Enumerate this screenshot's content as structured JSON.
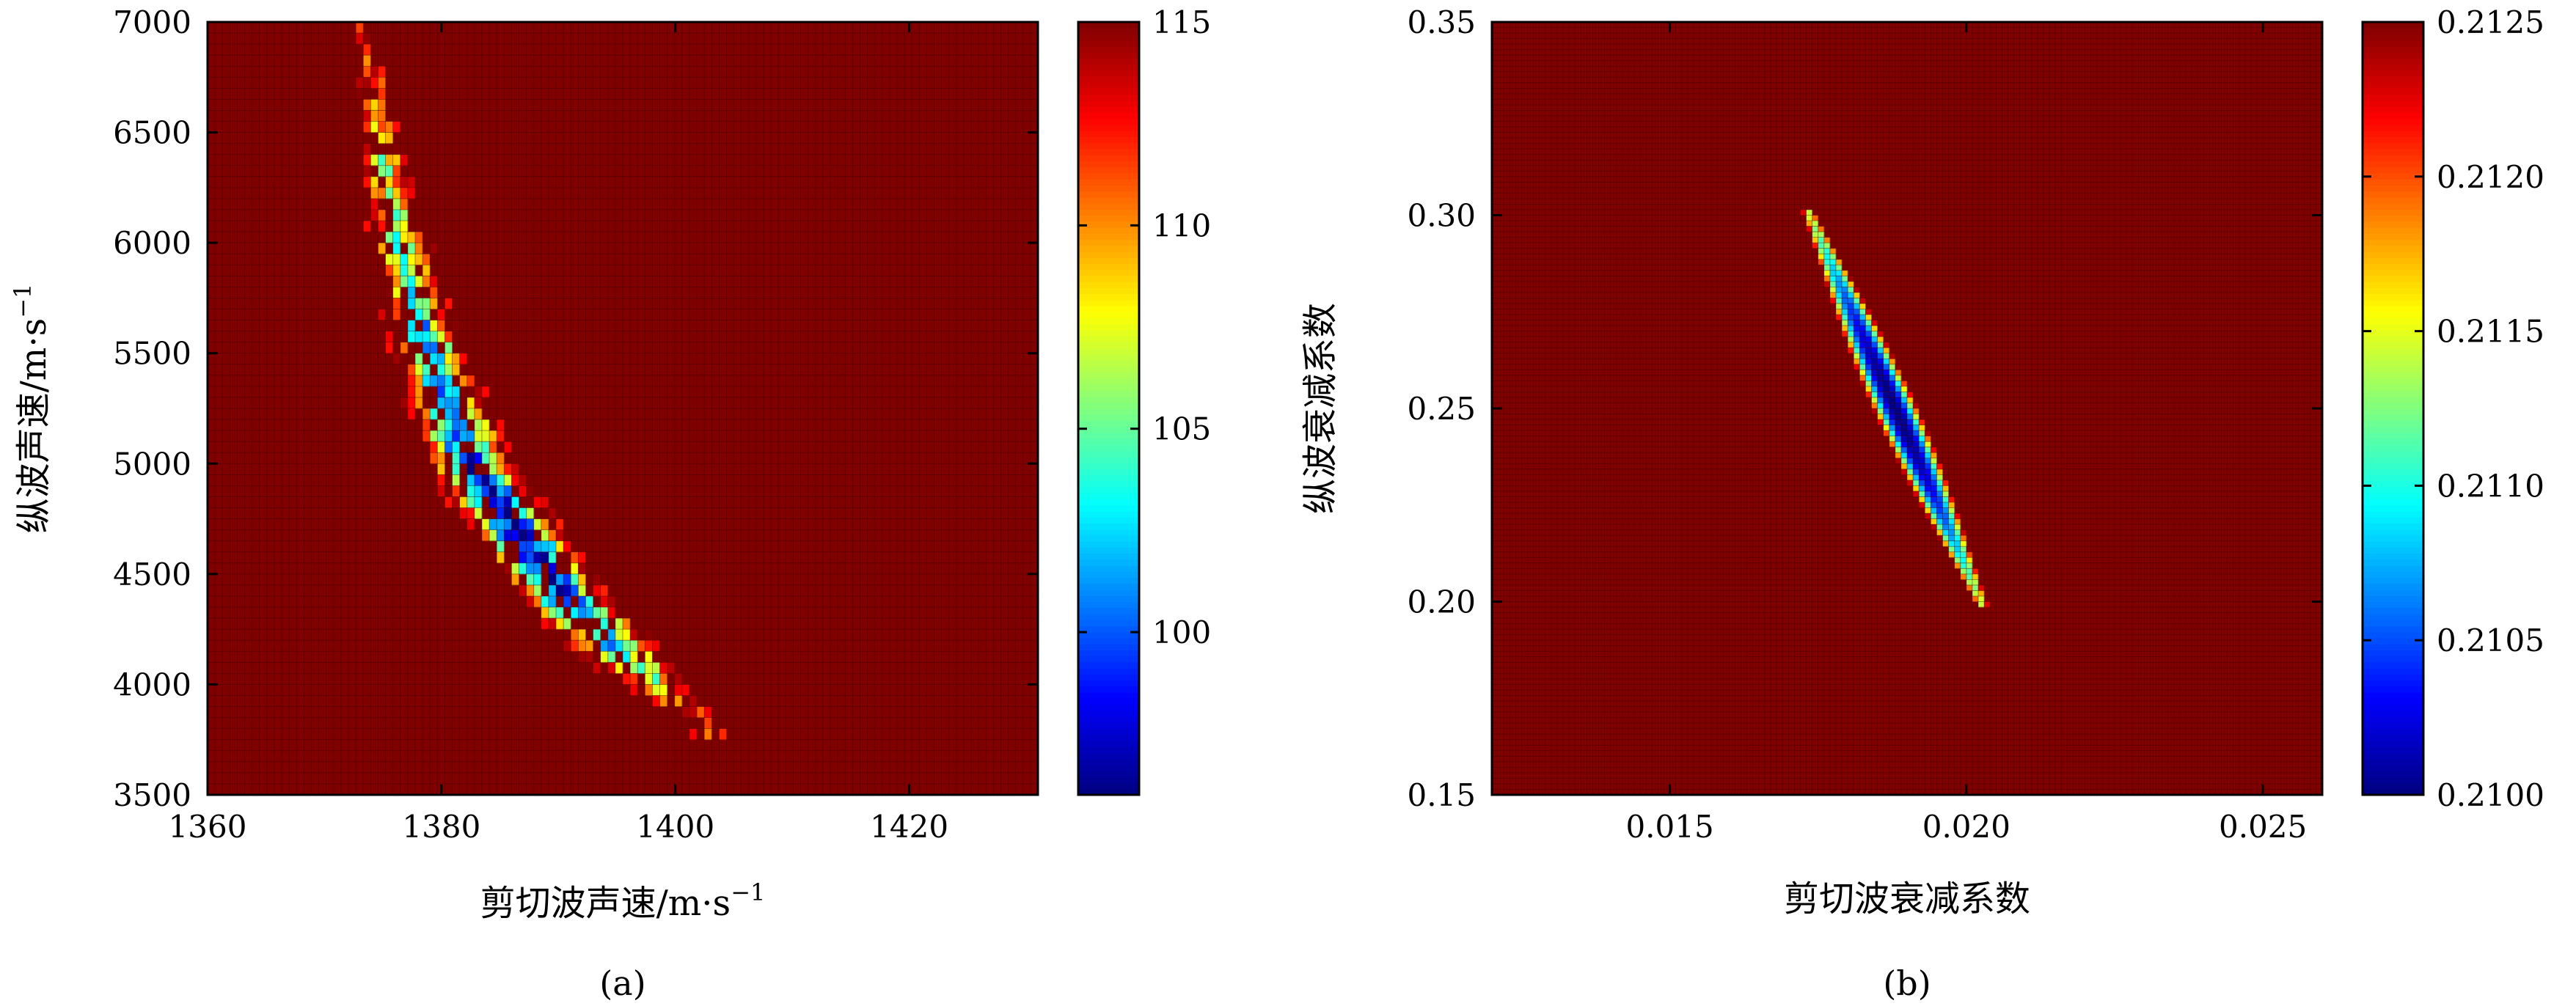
{
  "chart_data": [
    {
      "type": "heatmap",
      "panel_label": "(a)",
      "xlabel_text": "剪切波声速/m·s",
      "xlabel_sup": "−1",
      "ylabel_text": "纵波声速/m·s",
      "ylabel_sup": "−1",
      "xlim": [
        1360,
        1431
      ],
      "ylim": [
        3500,
        7000
      ],
      "x_ticks": [
        1360,
        1380,
        1400,
        1420
      ],
      "y_ticks": [
        3500,
        4000,
        4500,
        5000,
        5500,
        6000,
        6500,
        7000
      ],
      "colorbar": {
        "min": 96,
        "max": 115,
        "ticks": [
          100,
          105,
          110,
          115
        ],
        "colormap": "jet"
      },
      "background_value": 115,
      "grid": {
        "nx": 112,
        "ny": 70
      },
      "valley": {
        "description": "low-misfit band",
        "points": [
          {
            "x": 1373.5,
            "y": 7000,
            "half_width": 0.8,
            "min": 114
          },
          {
            "x": 1374.5,
            "y": 6500,
            "half_width": 1.5,
            "min": 108
          },
          {
            "x": 1376.5,
            "y": 6000,
            "half_width": 2.2,
            "min": 104
          },
          {
            "x": 1379.0,
            "y": 5500,
            "half_width": 2.8,
            "min": 101
          },
          {
            "x": 1382.5,
            "y": 5000,
            "half_width": 3.4,
            "min": 98
          },
          {
            "x": 1386.5,
            "y": 4700,
            "half_width": 3.6,
            "min": 97
          },
          {
            "x": 1390.5,
            "y": 4400,
            "half_width": 3.6,
            "min": 98
          },
          {
            "x": 1395.0,
            "y": 4150,
            "half_width": 3.2,
            "min": 102
          },
          {
            "x": 1399.5,
            "y": 3950,
            "half_width": 2.4,
            "min": 108
          },
          {
            "x": 1403.0,
            "y": 3850,
            "half_width": 1.2,
            "min": 113
          }
        ]
      }
    },
    {
      "type": "heatmap",
      "panel_label": "(b)",
      "xlabel_text": "剪切波衰减系数",
      "ylabel_text": "纵波衰减系数",
      "xlim": [
        0.012,
        0.026
      ],
      "ylim": [
        0.15,
        0.35
      ],
      "x_ticks": [
        "0.015",
        "0.020",
        "0.025"
      ],
      "x_tick_values": [
        0.015,
        0.02,
        0.025
      ],
      "y_ticks": [
        "0.15",
        "0.20",
        "0.25",
        "0.30",
        "0.35"
      ],
      "y_tick_values": [
        0.15,
        0.2,
        0.25,
        0.3,
        0.35
      ],
      "colorbar": {
        "min": 0.21,
        "max": 0.2125,
        "ticks": [
          "0.2100",
          "0.2105",
          "0.2110",
          "0.2115",
          "0.2120",
          "0.2125"
        ],
        "tick_values": [
          0.21,
          0.2105,
          0.211,
          0.2115,
          0.212,
          0.2125
        ],
        "colormap": "jet"
      },
      "background_value": 0.2125,
      "grid": {
        "nx": 140,
        "ny": 140
      },
      "valley": {
        "description": "narrow elongated minimum",
        "start": {
          "x": 0.0173,
          "y": 0.302
        },
        "end": {
          "x": 0.0203,
          "y": 0.198
        },
        "center": {
          "x": 0.0186,
          "y": 0.243
        },
        "half_width_x": 0.00038,
        "min": 0.21
      }
    }
  ]
}
